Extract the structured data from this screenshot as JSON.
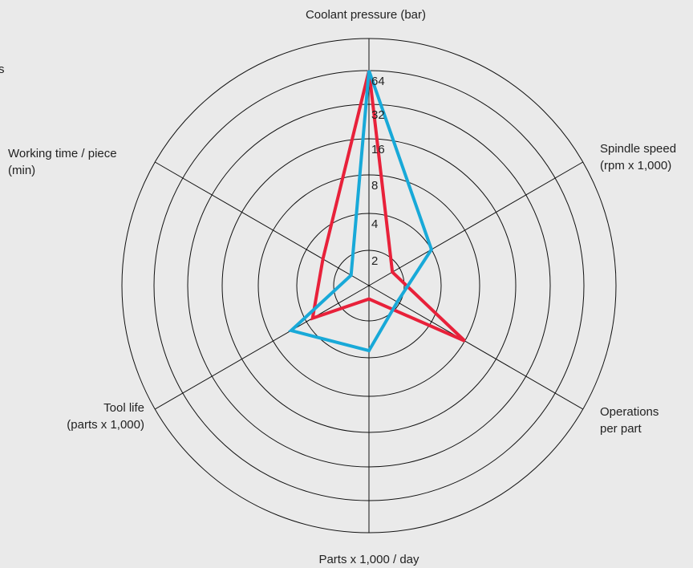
{
  "chart_data": {
    "type": "radar",
    "scale": "log2",
    "rings": [
      2,
      4,
      8,
      16,
      32,
      64
    ],
    "tick_labels": [
      "2",
      "4",
      "8",
      "16",
      "32",
      "64"
    ],
    "axes": [
      {
        "id": "coolant",
        "label_lines": [
          "Coolant pressure (bar)"
        ]
      },
      {
        "id": "spindle",
        "label_lines": [
          "Spindle speed",
          "(rpm x 1,000)"
        ]
      },
      {
        "id": "operations",
        "label_lines": [
          "Operations",
          "per part"
        ]
      },
      {
        "id": "parts",
        "label_lines": [
          "Parts x 1,000 / day"
        ]
      },
      {
        "id": "toollife",
        "label_lines": [
          "Tool life",
          "(parts x 1,000)"
        ]
      },
      {
        "id": "worktime",
        "label_lines": [
          "Working time / piece",
          "(min)"
        ]
      }
    ],
    "series": [
      {
        "color": "#e8213a",
        "values": [
          64,
          1.7,
          8,
          1.3,
          3.5,
          2.8
        ]
      },
      {
        "color": "#18a9d8",
        "values": [
          64,
          4,
          1.9,
          3.5,
          5.5,
          1.5
        ]
      }
    ],
    "grid": true,
    "legend": "none",
    "stray_text": "s"
  }
}
